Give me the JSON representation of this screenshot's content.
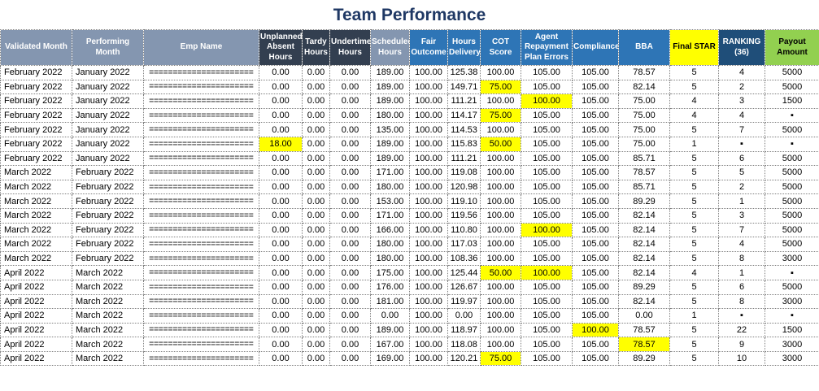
{
  "title": "Team Performance",
  "colors": {
    "title_navy": "#1F3864",
    "header_slate": "#8496B0",
    "header_dark_navy": "#333F50",
    "header_blue": "#2E75B6",
    "header_yellow": "#FFFF00",
    "header_ranking_navy": "#1F4E79",
    "header_green": "#92D050",
    "highlight_yellow": "#FFFF00"
  },
  "table": {
    "columns": [
      {
        "key": "validated_month",
        "label": "Validated Month",
        "group": "slate"
      },
      {
        "key": "performing_month",
        "label": "Performing Month",
        "group": "slate"
      },
      {
        "key": "emp_name",
        "label": "Emp Name",
        "group": "slate"
      },
      {
        "key": "unplanned_absent_hours",
        "label": "Unplanned Absent Hours",
        "group": "navy"
      },
      {
        "key": "tardy_hours",
        "label": "Tardy Hours",
        "group": "navy"
      },
      {
        "key": "undertime_hours",
        "label": "Undertime Hours",
        "group": "navy"
      },
      {
        "key": "scheduled_hours",
        "label": "Scheduled Hours",
        "group": "slate"
      },
      {
        "key": "fair_outcome",
        "label": "Fair Outcome",
        "group": "blue"
      },
      {
        "key": "hours_delivery",
        "label": "Hours Delivery",
        "group": "blue"
      },
      {
        "key": "cot_score",
        "label": "COT Score",
        "group": "blue"
      },
      {
        "key": "agent_repayment_plan_errors",
        "label": "Agent Repayment Plan Errors",
        "group": "blue"
      },
      {
        "key": "compliance",
        "label": "Compliance",
        "group": "blue"
      },
      {
        "key": "bba",
        "label": "BBA",
        "group": "blue"
      },
      {
        "key": "final_star",
        "label": "Final STAR",
        "group": "yellow"
      },
      {
        "key": "ranking_36",
        "label": "RANKING (36)",
        "group": "ranknavy"
      },
      {
        "key": "payout_amount",
        "label": "Payout Amount",
        "group": "green"
      }
    ],
    "rows": [
      {
        "cells": [
          "February 2022",
          "January 2022",
          "======================",
          "0.00",
          "0.00",
          "0.00",
          "189.00",
          "100.00",
          "125.38",
          "100.00",
          "105.00",
          "105.00",
          "78.57",
          "5",
          "4",
          "5000"
        ],
        "hl": []
      },
      {
        "cells": [
          "February 2022",
          "January 2022",
          "======================",
          "0.00",
          "0.00",
          "0.00",
          "189.00",
          "100.00",
          "149.71",
          "75.00",
          "105.00",
          "105.00",
          "82.14",
          "5",
          "2",
          "5000"
        ],
        "hl": [
          9
        ]
      },
      {
        "cells": [
          "February 2022",
          "January 2022",
          "======================",
          "0.00",
          "0.00",
          "0.00",
          "189.00",
          "100.00",
          "111.21",
          "100.00",
          "100.00",
          "105.00",
          "75.00",
          "4",
          "3",
          "1500"
        ],
        "hl": [
          10
        ]
      },
      {
        "cells": [
          "February 2022",
          "January 2022",
          "======================",
          "0.00",
          "0.00",
          "0.00",
          "180.00",
          "100.00",
          "114.17",
          "75.00",
          "105.00",
          "105.00",
          "75.00",
          "4",
          "4",
          "▪"
        ],
        "hl": [
          9
        ]
      },
      {
        "cells": [
          "February 2022",
          "January 2022",
          "======================",
          "0.00",
          "0.00",
          "0.00",
          "135.00",
          "100.00",
          "114.53",
          "100.00",
          "105.00",
          "105.00",
          "75.00",
          "5",
          "7",
          "5000"
        ],
        "hl": []
      },
      {
        "cells": [
          "February 2022",
          "January 2022",
          "======================",
          "18.00",
          "0.00",
          "0.00",
          "189.00",
          "100.00",
          "115.83",
          "50.00",
          "105.00",
          "105.00",
          "75.00",
          "1",
          "▪",
          "▪"
        ],
        "hl": [
          3,
          9
        ]
      },
      {
        "cells": [
          "February 2022",
          "January 2022",
          "======================",
          "0.00",
          "0.00",
          "0.00",
          "189.00",
          "100.00",
          "111.21",
          "100.00",
          "105.00",
          "105.00",
          "85.71",
          "5",
          "6",
          "5000"
        ],
        "hl": []
      },
      {
        "cells": [
          "March 2022",
          "February 2022",
          "======================",
          "0.00",
          "0.00",
          "0.00",
          "171.00",
          "100.00",
          "119.08",
          "100.00",
          "105.00",
          "105.00",
          "78.57",
          "5",
          "5",
          "5000"
        ],
        "hl": []
      },
      {
        "cells": [
          "March 2022",
          "February 2022",
          "======================",
          "0.00",
          "0.00",
          "0.00",
          "180.00",
          "100.00",
          "120.98",
          "100.00",
          "105.00",
          "105.00",
          "85.71",
          "5",
          "2",
          "5000"
        ],
        "hl": []
      },
      {
        "cells": [
          "March 2022",
          "February 2022",
          "======================",
          "0.00",
          "0.00",
          "0.00",
          "153.00",
          "100.00",
          "119.10",
          "100.00",
          "105.00",
          "105.00",
          "89.29",
          "5",
          "1",
          "5000"
        ],
        "hl": []
      },
      {
        "cells": [
          "March 2022",
          "February 2022",
          "======================",
          "0.00",
          "0.00",
          "0.00",
          "171.00",
          "100.00",
          "119.56",
          "100.00",
          "105.00",
          "105.00",
          "82.14",
          "5",
          "3",
          "5000"
        ],
        "hl": []
      },
      {
        "cells": [
          "March 2022",
          "February 2022",
          "======================",
          "0.00",
          "0.00",
          "0.00",
          "166.00",
          "100.00",
          "110.80",
          "100.00",
          "100.00",
          "105.00",
          "82.14",
          "5",
          "7",
          "5000"
        ],
        "hl": [
          10
        ]
      },
      {
        "cells": [
          "March 2022",
          "February 2022",
          "======================",
          "0.00",
          "0.00",
          "0.00",
          "180.00",
          "100.00",
          "117.03",
          "100.00",
          "105.00",
          "105.00",
          "82.14",
          "5",
          "4",
          "5000"
        ],
        "hl": []
      },
      {
        "cells": [
          "March 2022",
          "February 2022",
          "======================",
          "0.00",
          "0.00",
          "0.00",
          "180.00",
          "100.00",
          "108.36",
          "100.00",
          "105.00",
          "105.00",
          "82.14",
          "5",
          "8",
          "3000"
        ],
        "hl": []
      },
      {
        "cells": [
          "April 2022",
          "March 2022",
          "======================",
          "0.00",
          "0.00",
          "0.00",
          "175.00",
          "100.00",
          "125.44",
          "50.00",
          "100.00",
          "105.00",
          "82.14",
          "4",
          "1",
          "▪"
        ],
        "hl": [
          9,
          10
        ]
      },
      {
        "cells": [
          "April 2022",
          "March 2022",
          "======================",
          "0.00",
          "0.00",
          "0.00",
          "176.00",
          "100.00",
          "126.67",
          "100.00",
          "105.00",
          "105.00",
          "89.29",
          "5",
          "6",
          "5000"
        ],
        "hl": []
      },
      {
        "cells": [
          "April 2022",
          "March 2022",
          "======================",
          "0.00",
          "0.00",
          "0.00",
          "181.00",
          "100.00",
          "119.97",
          "100.00",
          "105.00",
          "105.00",
          "82.14",
          "5",
          "8",
          "3000"
        ],
        "hl": []
      },
      {
        "cells": [
          "April 2022",
          "March 2022",
          "======================",
          "0.00",
          "0.00",
          "0.00",
          "0.00",
          "100.00",
          "0.00",
          "100.00",
          "105.00",
          "105.00",
          "0.00",
          "1",
          "▪",
          "▪"
        ],
        "hl": []
      },
      {
        "cells": [
          "April 2022",
          "March 2022",
          "======================",
          "0.00",
          "0.00",
          "0.00",
          "189.00",
          "100.00",
          "118.97",
          "100.00",
          "105.00",
          "100.00",
          "78.57",
          "5",
          "22",
          "1500"
        ],
        "hl": [
          11
        ]
      },
      {
        "cells": [
          "April 2022",
          "March 2022",
          "======================",
          "0.00",
          "0.00",
          "0.00",
          "167.00",
          "100.00",
          "118.08",
          "100.00",
          "105.00",
          "105.00",
          "78.57",
          "5",
          "9",
          "3000"
        ],
        "hl": [
          12
        ]
      },
      {
        "cells": [
          "April 2022",
          "March 2022",
          "======================",
          "0.00",
          "0.00",
          "0.00",
          "169.00",
          "100.00",
          "120.21",
          "75.00",
          "105.00",
          "105.00",
          "89.29",
          "5",
          "10",
          "3000"
        ],
        "hl": [
          9
        ]
      }
    ]
  }
}
